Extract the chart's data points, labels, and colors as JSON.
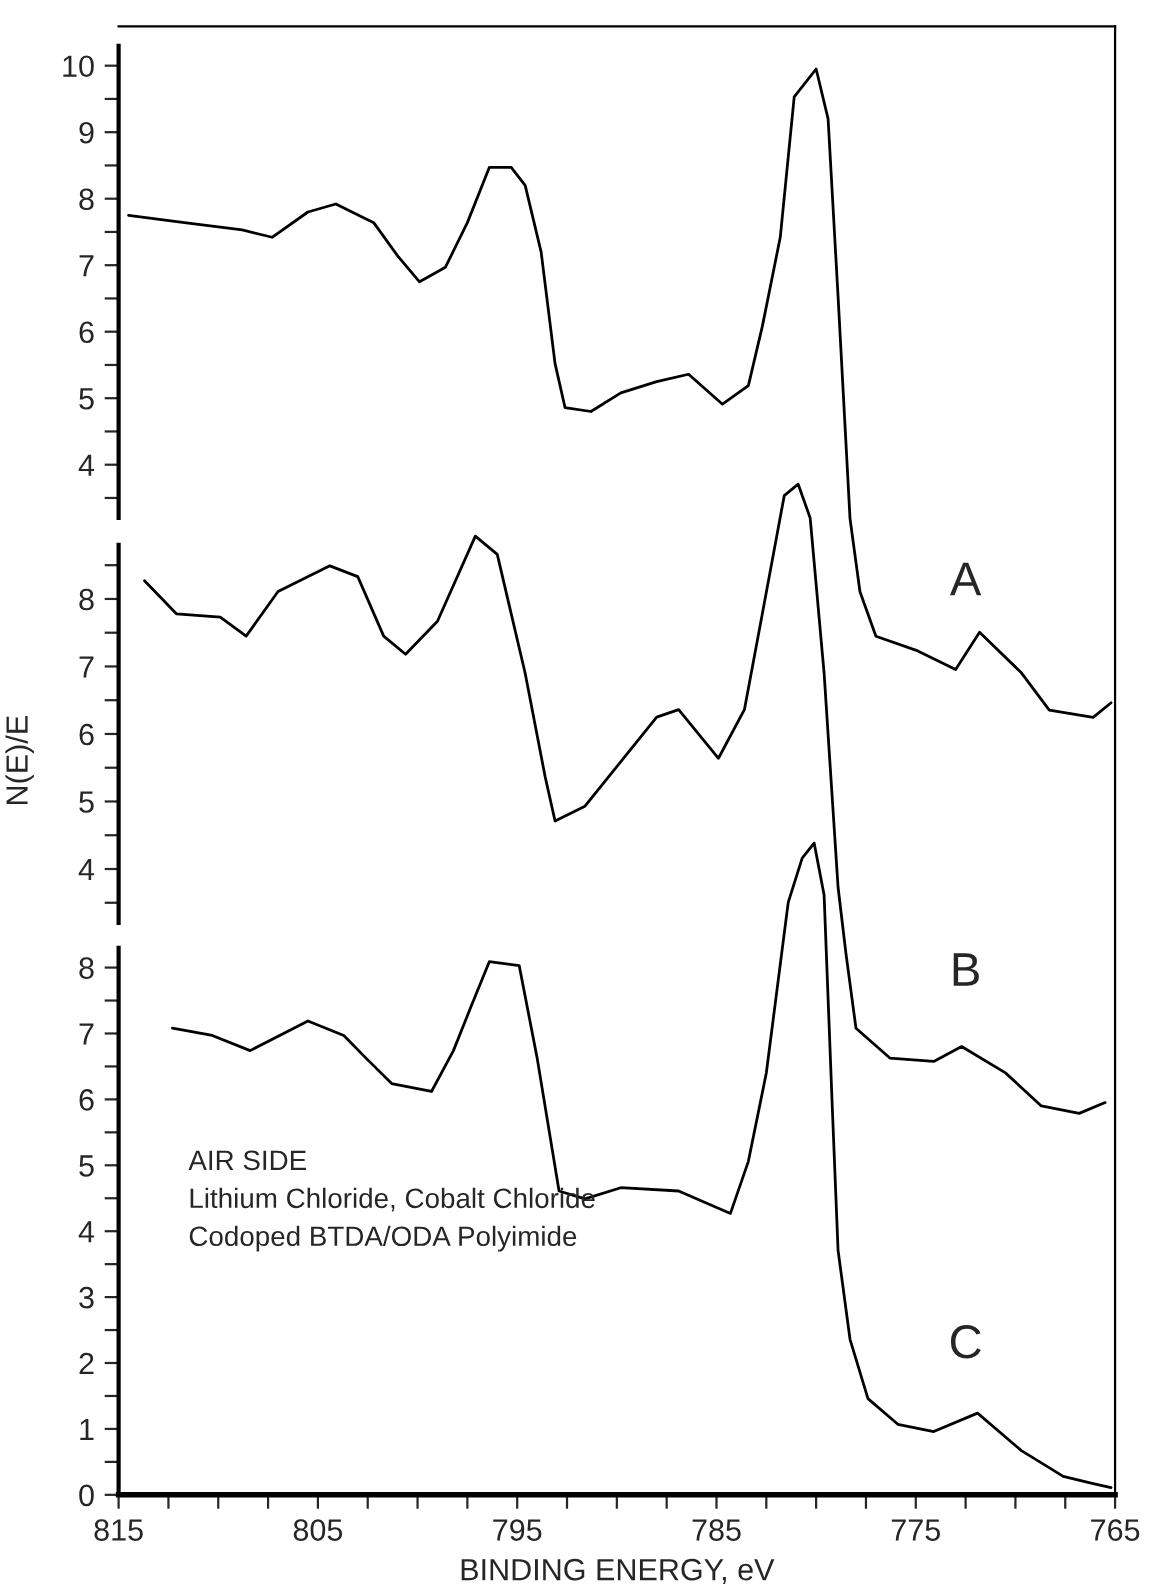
{
  "chart_data": [
    {
      "type": "line",
      "xlim": [
        815,
        765
      ],
      "ylim": [
        -11.49,
        10.59
      ],
      "tick_labels": "y",
      "marker": "none",
      "line_style": "solid",
      "yticks": [
        {
          "value": 3.5,
          "label": null
        },
        4,
        {
          "value": 4.5,
          "label": null
        },
        5,
        {
          "value": 5.5,
          "label": null
        },
        6,
        {
          "value": 6.5,
          "label": null
        },
        7,
        {
          "value": 7.5,
          "label": null
        },
        8,
        {
          "value": 8.5,
          "label": null
        },
        9,
        {
          "value": 9.5,
          "label": null
        },
        10
      ],
      "annotations": [
        "A"
      ],
      "series": [
        {
          "color": "#000000",
          "x": [
            814.5,
            811.7,
            808.8,
            807.3,
            805.5,
            804.1,
            802.2,
            801.0,
            799.9,
            798.6,
            797.5,
            796.4,
            795.3,
            794.6,
            793.8,
            793.1,
            792.6,
            791.3,
            789.8,
            788.0,
            786.4,
            784.7,
            783.4,
            782.7,
            781.8,
            781.1,
            780.0,
            779.4,
            778.9,
            778.3,
            777.8,
            777.0,
            774.9,
            773.0,
            771.8,
            769.7,
            768.3,
            766.1,
            765.2
          ],
          "values": [
            7.75,
            7.64,
            7.53,
            7.42,
            7.8,
            7.92,
            7.64,
            7.14,
            6.75,
            6.97,
            7.64,
            8.47,
            8.47,
            8.2,
            7.2,
            5.52,
            4.86,
            4.8,
            5.08,
            5.25,
            5.36,
            4.91,
            5.19,
            6.08,
            7.42,
            9.53,
            9.95,
            9.2,
            6.53,
            3.19,
            2.09,
            1.42,
            1.2,
            0.92,
            1.48,
            0.87,
            0.31,
            0.2,
            0.42
          ]
        }
      ]
    },
    {
      "type": "line",
      "xlim": [
        815,
        765
      ],
      "ylim": [
        -5.27,
        16.48
      ],
      "tick_labels": "y",
      "marker": "none",
      "line_style": "solid",
      "ylabel": "N(E)/E",
      "yticks": [
        {
          "value": 3.5,
          "label": null
        },
        4,
        {
          "value": 4.5,
          "label": null
        },
        5,
        {
          "value": 5.5,
          "label": null
        },
        6,
        {
          "value": 6.5,
          "label": null
        },
        7,
        {
          "value": 7.5,
          "label": null
        },
        8,
        {
          "value": 8.5,
          "label": null
        }
      ],
      "annotations": [
        "B"
      ],
      "series": [
        {
          "color": "#000000",
          "x": [
            813.7,
            812.1,
            809.9,
            808.6,
            807.0,
            804.4,
            803.0,
            801.7,
            800.6,
            799.0,
            797.1,
            796.0,
            794.6,
            793.6,
            793.1,
            791.6,
            789.8,
            788.0,
            786.9,
            784.9,
            783.6,
            782.7,
            781.6,
            780.9,
            780.3,
            779.6,
            778.9,
            778.5,
            778.0,
            776.3,
            774.1,
            772.7,
            770.5,
            768.7,
            766.8,
            765.5
          ],
          "values": [
            8.27,
            7.78,
            7.73,
            7.45,
            8.11,
            8.49,
            8.33,
            7.45,
            7.18,
            7.67,
            8.93,
            8.66,
            6.9,
            5.37,
            4.71,
            4.93,
            5.59,
            6.25,
            6.36,
            5.64,
            6.36,
            7.78,
            9.53,
            9.7,
            9.2,
            6.9,
            3.73,
            2.74,
            1.64,
            1.2,
            1.15,
            1.37,
            0.98,
            0.49,
            0.38,
            0.54
          ]
        }
      ]
    },
    {
      "type": "line",
      "xlim": [
        815,
        765
      ],
      "ylim": [
        0,
        22.28
      ],
      "marker": "none",
      "line_style": "solid",
      "xlabel": "BINDING ENERGY, eV",
      "xticks": [
        815,
        {
          "value": 812.5,
          "label": null
        },
        {
          "value": 810,
          "label": null
        },
        {
          "value": 807.5,
          "label": null
        },
        805,
        {
          "value": 802.5,
          "label": null
        },
        {
          "value": 800,
          "label": null
        },
        {
          "value": 797.5,
          "label": null
        },
        795,
        {
          "value": 792.5,
          "label": null
        },
        {
          "value": 790,
          "label": null
        },
        {
          "value": 787.5,
          "label": null
        },
        785,
        {
          "value": 782.5,
          "label": null
        },
        {
          "value": 780,
          "label": null
        },
        {
          "value": 777.5,
          "label": null
        },
        775,
        {
          "value": 772.5,
          "label": null
        },
        {
          "value": 770,
          "label": null
        },
        {
          "value": 767.5,
          "label": null
        },
        765
      ],
      "yticks": [
        0,
        {
          "value": 0.5,
          "label": null
        },
        1,
        {
          "value": 1.5,
          "label": null
        },
        2,
        {
          "value": 2.5,
          "label": null
        },
        3,
        {
          "value": 3.5,
          "label": null
        },
        4,
        {
          "value": 4.5,
          "label": null
        },
        5,
        {
          "value": 5.5,
          "label": null
        },
        6,
        {
          "value": 6.5,
          "label": null
        },
        7,
        {
          "value": 7.5,
          "label": null
        },
        8
      ],
      "annotations": [
        "C",
        "AIR SIDE",
        "Lithium Chloride, Cobalt Chloride",
        "Codoped BTDA/ODA Polyimide"
      ],
      "series": [
        {
          "color": "#000000",
          "x": [
            812.3,
            810.3,
            808.4,
            805.5,
            803.7,
            802.6,
            801.3,
            799.3,
            798.2,
            797.3,
            796.4,
            794.9,
            794.0,
            792.9,
            791.6,
            789.8,
            786.9,
            784.3,
            783.4,
            782.5,
            781.4,
            780.7,
            780.1,
            779.6,
            779.2,
            778.9,
            778.3,
            777.4,
            775.9,
            774.1,
            771.9,
            769.7,
            767.6,
            766.1,
            765.2
          ],
          "values": [
            7.08,
            6.97,
            6.74,
            7.19,
            6.97,
            6.63,
            6.24,
            6.12,
            6.74,
            7.42,
            8.09,
            8.03,
            6.63,
            4.61,
            4.49,
            4.66,
            4.61,
            4.27,
            5.06,
            6.4,
            8.99,
            9.66,
            9.89,
            9.1,
            5.96,
            3.71,
            2.36,
            1.46,
            1.07,
            0.96,
            1.24,
            0.67,
            0.28,
            0.17,
            0.11
          ]
        }
      ]
    }
  ]
}
